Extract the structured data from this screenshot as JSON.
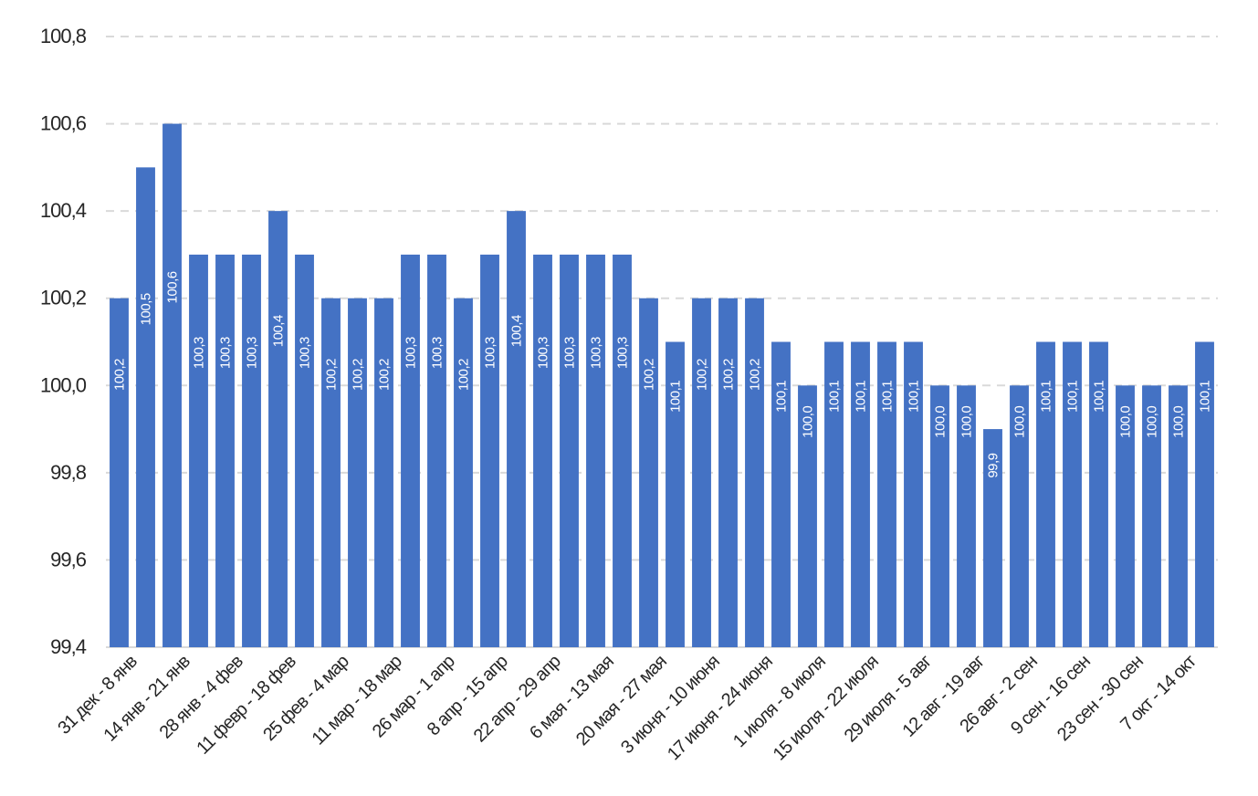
{
  "chart_data": {
    "type": "bar",
    "title": "",
    "xlabel": "",
    "ylabel": "",
    "ylim": [
      99.4,
      100.8
    ],
    "yticks": [
      "99,4",
      "99,6",
      "99,8",
      "100,0",
      "100,2",
      "100,4",
      "100,6",
      "100,8"
    ],
    "grid": true,
    "legend": "none",
    "bar_color": "#4472C4",
    "data_label_color": "#FFFFFF",
    "categories": [
      "31 дек - 8 янв",
      "",
      "14 янв - 21 янв",
      "",
      "28 янв - 4 фев",
      "",
      "11 февр - 18 фев",
      "",
      "25 фев - 4 мар",
      "",
      "11 мар - 18 мар",
      "",
      "26 мар - 1 апр",
      "",
      "8 апр - 15 апр",
      "",
      "22 апр - 29 апр",
      "",
      "6 мая - 13 мая",
      "",
      "20 мая - 27 мая",
      "",
      "3 июня - 10 июня",
      "",
      "17 июня - 24 июня",
      "",
      "1 июля - 8 июля",
      "",
      "15 июля - 22 июля",
      "",
      "29 июля - 5 авг",
      "",
      "12 авг - 19 авг",
      "",
      "26 авг - 2 сен",
      "",
      "9 сен - 16 сен",
      "",
      "23 сен - 30 сен",
      "",
      "7 окт - 14 окт",
      ""
    ],
    "values": [
      100.2,
      100.5,
      100.6,
      100.3,
      100.3,
      100.3,
      100.4,
      100.3,
      100.2,
      100.2,
      100.2,
      100.3,
      100.3,
      100.2,
      100.3,
      100.4,
      100.3,
      100.3,
      100.3,
      100.3,
      100.2,
      100.1,
      100.2,
      100.2,
      100.2,
      100.1,
      100.0,
      100.1,
      100.1,
      100.1,
      100.1,
      100.0,
      100.0,
      99.9,
      100.0,
      100.1,
      100.1,
      100.1,
      100.0,
      100.0,
      100.0,
      100.1
    ],
    "data_labels": [
      "100,2",
      "100,5",
      "100,6",
      "100,3",
      "100,3",
      "100,3",
      "100,4",
      "100,3",
      "100,2",
      "100,2",
      "100,2",
      "100,3",
      "100,3",
      "100,2",
      "100,3",
      "100,4",
      "100,3",
      "100,3",
      "100,3",
      "100,3",
      "100,2",
      "100,1",
      "100,2",
      "100,2",
      "100,2",
      "100,1",
      "100,0",
      "100,1",
      "100,1",
      "100,1",
      "100,1",
      "100,0",
      "100,0",
      "99,9",
      "100,0",
      "100,1",
      "100,1",
      "100,1",
      "100,0",
      "100,0",
      "100,0",
      "100,1"
    ]
  }
}
